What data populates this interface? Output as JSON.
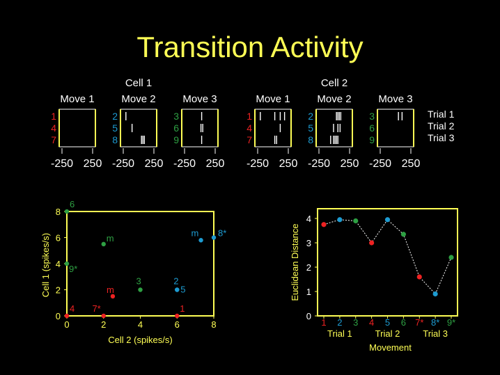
{
  "slide": {
    "title": "Transition Activity",
    "colors": {
      "red": "#ee2222",
      "green": "#2ea043",
      "blue": "#1d9bd1",
      "yellow": "#ffff55",
      "white": "#ffffff"
    }
  },
  "raster": {
    "move_labels": [
      "Move 1",
      "Move 2",
      "Move 3"
    ],
    "x_tick_labels": [
      "-250",
      "250"
    ],
    "legend": [
      "Trial 1",
      "Trial 2",
      "Trial 3"
    ],
    "cells": [
      {
        "name": "Cell 1",
        "panels": [
          {
            "rows": [
              "1",
              "4",
              "7"
            ],
            "color": "red",
            "spikes": [
              [],
              [],
              []
            ]
          },
          {
            "rows": [
              "2",
              "5",
              "8"
            ],
            "color": "blue",
            "spikes": [
              [
                0.15
              ],
              [
                0.32
              ],
              [
                0.58,
                0.62,
                0.66
              ]
            ]
          },
          {
            "rows": [
              "3",
              "6",
              "9"
            ],
            "color": "green",
            "spikes": [
              [
                0.55
              ],
              [
                0.53,
                0.58
              ],
              [
                0.55
              ]
            ]
          }
        ]
      },
      {
        "name": "Cell 2",
        "panels": [
          {
            "rows": [
              "1",
              "4",
              "7"
            ],
            "color": "red",
            "spikes": [
              [
                0.15,
                0.55,
                0.7,
                0.82
              ],
              [
                0.7
              ],
              [
                0.55,
                0.6
              ]
            ]
          },
          {
            "rows": [
              "2",
              "5",
              "8"
            ],
            "color": "blue",
            "spikes": [
              [
                0.56,
                0.6,
                0.64,
                0.68
              ],
              [
                0.48,
                0.6,
                0.66
              ],
              [
                0.4,
                0.48,
                0.52,
                0.56,
                0.6
              ]
            ]
          },
          {
            "rows": [
              "3",
              "6",
              "9"
            ],
            "color": "green",
            "spikes": [
              [
                0.58,
                0.68
              ],
              [],
              []
            ]
          }
        ]
      }
    ]
  },
  "chart_data": [
    {
      "type": "scatter",
      "xlabel": "Cell 2 (spikes/s)",
      "ylabel": "Cell 1 (spikes/s)",
      "xlim": [
        0,
        8
      ],
      "ylim": [
        0,
        8
      ],
      "x_ticks": [
        "0",
        "2",
        "4",
        "6",
        "8"
      ],
      "y_ticks": [
        "0",
        "2",
        "4",
        "6",
        "8"
      ],
      "points": [
        {
          "x": 0,
          "y": 0,
          "label": "4",
          "color": "red"
        },
        {
          "x": 2,
          "y": 0,
          "label": "7*",
          "color": "red"
        },
        {
          "x": 6,
          "y": 0,
          "label": "1",
          "color": "red"
        },
        {
          "x": 2.5,
          "y": 1.5,
          "label": "m",
          "color": "red"
        },
        {
          "x": 0,
          "y": 8,
          "label": "6",
          "color": "green"
        },
        {
          "x": 0,
          "y": 4,
          "label": "9*",
          "color": "green"
        },
        {
          "x": 4,
          "y": 2,
          "label": "3",
          "color": "green"
        },
        {
          "x": 2,
          "y": 5.5,
          "label": "m",
          "color": "green"
        },
        {
          "x": 6,
          "y": 2,
          "label": "2",
          "color": "blue"
        },
        {
          "x": 6,
          "y": 2,
          "label": "5",
          "color": "blue"
        },
        {
          "x": 7.3,
          "y": 5.8,
          "label": "m",
          "color": "blue"
        },
        {
          "x": 8,
          "y": 6,
          "label": "8*",
          "color": "blue"
        }
      ]
    },
    {
      "type": "line",
      "ylabel": "Euclidean Distance",
      "xlabel": "Movement",
      "ylim": [
        0,
        4.4
      ],
      "y_ticks": [
        "0",
        "1",
        "2",
        "3",
        "4"
      ],
      "categories": [
        "1",
        "2",
        "3",
        "4",
        "5",
        "6",
        "7*",
        "8*",
        "9*"
      ],
      "category_colors": [
        "red",
        "blue",
        "green",
        "red",
        "blue",
        "green",
        "red",
        "blue",
        "green"
      ],
      "values": [
        3.75,
        3.95,
        3.9,
        3.0,
        3.95,
        3.35,
        1.6,
        0.9,
        2.4
      ],
      "group_labels": [
        "Trial 1",
        "Trial 2",
        "Trial 3"
      ]
    }
  ]
}
